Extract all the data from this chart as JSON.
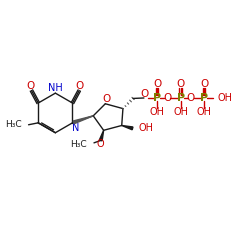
{
  "bg_color": "#ffffff",
  "black": "#1a1a1a",
  "blue": "#0000cc",
  "red": "#cc0000",
  "olive": "#808000",
  "gray": "#555555",
  "bond_lw": 1.0,
  "figsize": [
    2.5,
    2.5
  ],
  "dpi": 100,
  "xlim": [
    0,
    10
  ],
  "ylim": [
    0,
    10
  ]
}
